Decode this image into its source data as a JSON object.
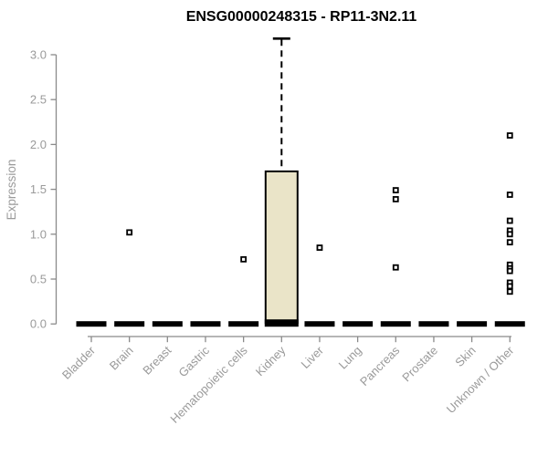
{
  "chart_data": {
    "type": "boxplot",
    "title": "ENSG00000248315 - RP11-3N2.11",
    "ylabel": "Expression",
    "xlabel": "",
    "ylim": [
      0,
      3.2
    ],
    "yticks": [
      0.0,
      0.5,
      1.0,
      1.5,
      2.0,
      2.5,
      3.0
    ],
    "grid": false,
    "legend": false,
    "categories": [
      "Bladder",
      "Brain",
      "Breast",
      "Gastric",
      "Hematopoietic cells",
      "Kidney",
      "Liver",
      "Lung",
      "Pancreas",
      "Prostate",
      "Skin",
      "Unknown / Other"
    ],
    "boxes": [
      {
        "category": "Bladder",
        "whisker_low": 0,
        "q1": 0,
        "median": 0,
        "q3": 0,
        "whisker_high": 0,
        "outliers": []
      },
      {
        "category": "Brain",
        "whisker_low": 0,
        "q1": 0,
        "median": 0,
        "q3": 0,
        "whisker_high": 0,
        "outliers": [
          1.02
        ]
      },
      {
        "category": "Breast",
        "whisker_low": 0,
        "q1": 0,
        "median": 0,
        "q3": 0,
        "whisker_high": 0,
        "outliers": []
      },
      {
        "category": "Gastric",
        "whisker_low": 0,
        "q1": 0,
        "median": 0,
        "q3": 0,
        "whisker_high": 0,
        "outliers": []
      },
      {
        "category": "Hematopoietic cells",
        "whisker_low": 0,
        "q1": 0,
        "median": 0,
        "q3": 0,
        "whisker_high": 0,
        "outliers": [
          0.72
        ]
      },
      {
        "category": "Kidney",
        "whisker_low": 0,
        "q1": 0.01,
        "median": 0.01,
        "q3": 1.7,
        "whisker_high": 3.18,
        "outliers": []
      },
      {
        "category": "Liver",
        "whisker_low": 0,
        "q1": 0,
        "median": 0,
        "q3": 0,
        "whisker_high": 0,
        "outliers": [
          0.85
        ]
      },
      {
        "category": "Lung",
        "whisker_low": 0,
        "q1": 0,
        "median": 0,
        "q3": 0,
        "whisker_high": 0,
        "outliers": []
      },
      {
        "category": "Pancreas",
        "whisker_low": 0,
        "q1": 0,
        "median": 0,
        "q3": 0,
        "whisker_high": 0,
        "outliers": [
          1.49,
          1.39,
          0.63
        ]
      },
      {
        "category": "Prostate",
        "whisker_low": 0,
        "q1": 0,
        "median": 0,
        "q3": 0,
        "whisker_high": 0,
        "outliers": []
      },
      {
        "category": "Skin",
        "whisker_low": 0,
        "q1": 0,
        "median": 0,
        "q3": 0,
        "whisker_high": 0,
        "outliers": []
      },
      {
        "category": "Unknown / Other",
        "whisker_low": 0,
        "q1": 0,
        "median": 0,
        "q3": 0,
        "whisker_high": 0,
        "outliers": [
          2.1,
          1.44,
          1.15,
          1.04,
          1.0,
          0.91,
          0.66,
          0.62,
          0.59,
          0.46,
          0.42,
          0.36
        ]
      }
    ],
    "colors": {
      "box_fill": "#eae4c8",
      "box_border": "#000000",
      "median": "#000000",
      "whisker": "#000000",
      "outlier_stroke": "#000000",
      "outlier_fill": "#ffffff",
      "axis_line": "#8a8a8a",
      "axis_text": "#9a9a9a",
      "title": "#000000",
      "background": "#ffffff"
    }
  }
}
